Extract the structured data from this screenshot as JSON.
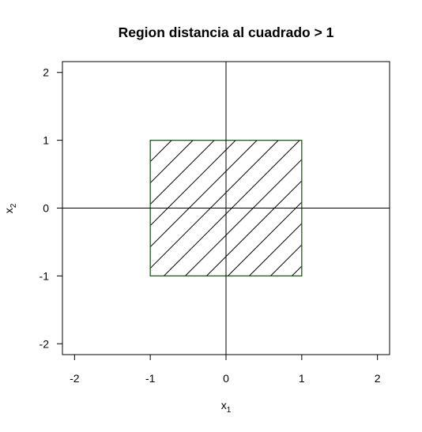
{
  "chart_data": {
    "type": "area",
    "title": "Region distancia al cuadrado > 1",
    "xlabel": {
      "base": "x",
      "sub": "1"
    },
    "ylabel": {
      "base": "x",
      "sub": "2"
    },
    "xlim": [
      -2.16,
      2.16
    ],
    "ylim": [
      -2.16,
      2.16
    ],
    "xticks": [
      -2,
      -1,
      0,
      1,
      2
    ],
    "yticks": [
      -2,
      -1,
      0,
      1,
      2
    ],
    "xtick_labels": [
      "-2",
      "-1",
      "0",
      "1",
      "2"
    ],
    "ytick_labels": [
      "-2",
      "-1",
      "0",
      "1",
      "2"
    ],
    "reference_lines": {
      "x": 0,
      "y": 0
    },
    "region": {
      "shape": "square",
      "x": [
        -1,
        1
      ],
      "y": [
        -1,
        1
      ],
      "fill": "diagonal-hatch",
      "border_color": "#1a5c1a",
      "hatch_color": "#000000"
    },
    "grid": false,
    "legend": "none"
  }
}
